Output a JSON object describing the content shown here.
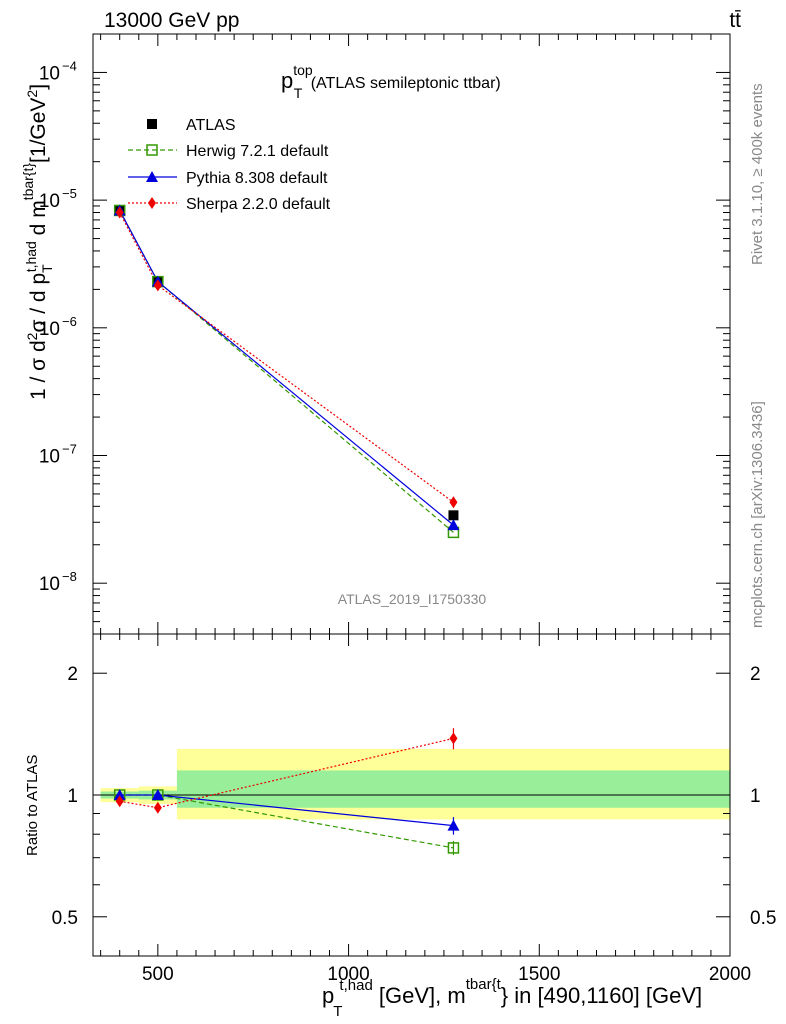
{
  "header": {
    "left": "13000 GeV pp",
    "right": "tt̄"
  },
  "side_labels": {
    "rivet": "Rivet 3.1.10, ≥ 400k events",
    "mcplots": "mcplots.cern.ch [arXiv:1306.3436]"
  },
  "watermark": "ATLAS_2019_I1750330",
  "chart_data": {
    "type": "line",
    "title": {
      "main": "p",
      "sup": "top",
      "sub": "T",
      "suffix": " (ATLAS semileptonic ttbar)"
    },
    "ylabel": "1 / σ d²σ / d p_T^{t,had} d m^{tbar{t}} [1/GeV²]",
    "xlabel": "p_T^{t,had} [GeV], m^{tbar{t}} in [490,1160] [GeV]",
    "xlim": [
      330,
      2000
    ],
    "ylim": [
      4e-09,
      0.0002
    ],
    "yscale": "log",
    "x": [
      400,
      500,
      1275
    ],
    "bin_edges": [
      350,
      450,
      550,
      2000
    ],
    "series": [
      {
        "name": "ATLAS",
        "color": "#000000",
        "marker": "filled-square",
        "values": [
          8.3e-06,
          2.3e-06,
          3.4e-08
        ]
      },
      {
        "name": "Herwig 7.2.1 default",
        "color": "#339900",
        "marker": "open-square",
        "linestyle": "dashed",
        "values": [
          8.3e-06,
          2.3e-06,
          2.5e-08
        ]
      },
      {
        "name": "Pythia 8.308 default",
        "color": "#0000dd",
        "marker": "triangle",
        "linestyle": "solid",
        "values": [
          8.3e-06,
          2.3e-06,
          2.85e-08
        ]
      },
      {
        "name": "Sherpa 2.2.0 default",
        "color": "#ee0000",
        "marker": "diamond",
        "linestyle": "dotted",
        "values": [
          8e-06,
          2.15e-06,
          4.3e-08
        ]
      }
    ],
    "ratio": {
      "ylabel": "Ratio to ATLAS",
      "ylim": [
        0.4,
        2.5
      ],
      "yscale": "log",
      "ticks": [
        0.5,
        1,
        2
      ],
      "band_outer": [
        [
          0.96,
          1.04
        ],
        [
          0.95,
          1.05
        ],
        [
          0.87,
          1.3
        ]
      ],
      "band_inner": [
        [
          0.98,
          1.02
        ],
        [
          0.975,
          1.025
        ],
        [
          0.93,
          1.15
        ]
      ],
      "series": [
        {
          "name": "Herwig 7.2.1 default",
          "values": [
            1.0,
            1.0,
            0.74
          ],
          "errors": [
            0.01,
            0.02,
            0.04
          ]
        },
        {
          "name": "Pythia 8.308 default",
          "values": [
            1.0,
            1.0,
            0.84
          ],
          "errors": [
            0.01,
            0.02,
            0.05
          ]
        },
        {
          "name": "Sherpa 2.2.0 default",
          "values": [
            0.965,
            0.93,
            1.38
          ],
          "errors": [
            0.01,
            0.02,
            0.06
          ]
        }
      ]
    },
    "xticks": [
      500,
      1000,
      1500,
      2000
    ],
    "yticks_exp": [
      -8,
      -7,
      -6,
      -5,
      -4
    ]
  }
}
